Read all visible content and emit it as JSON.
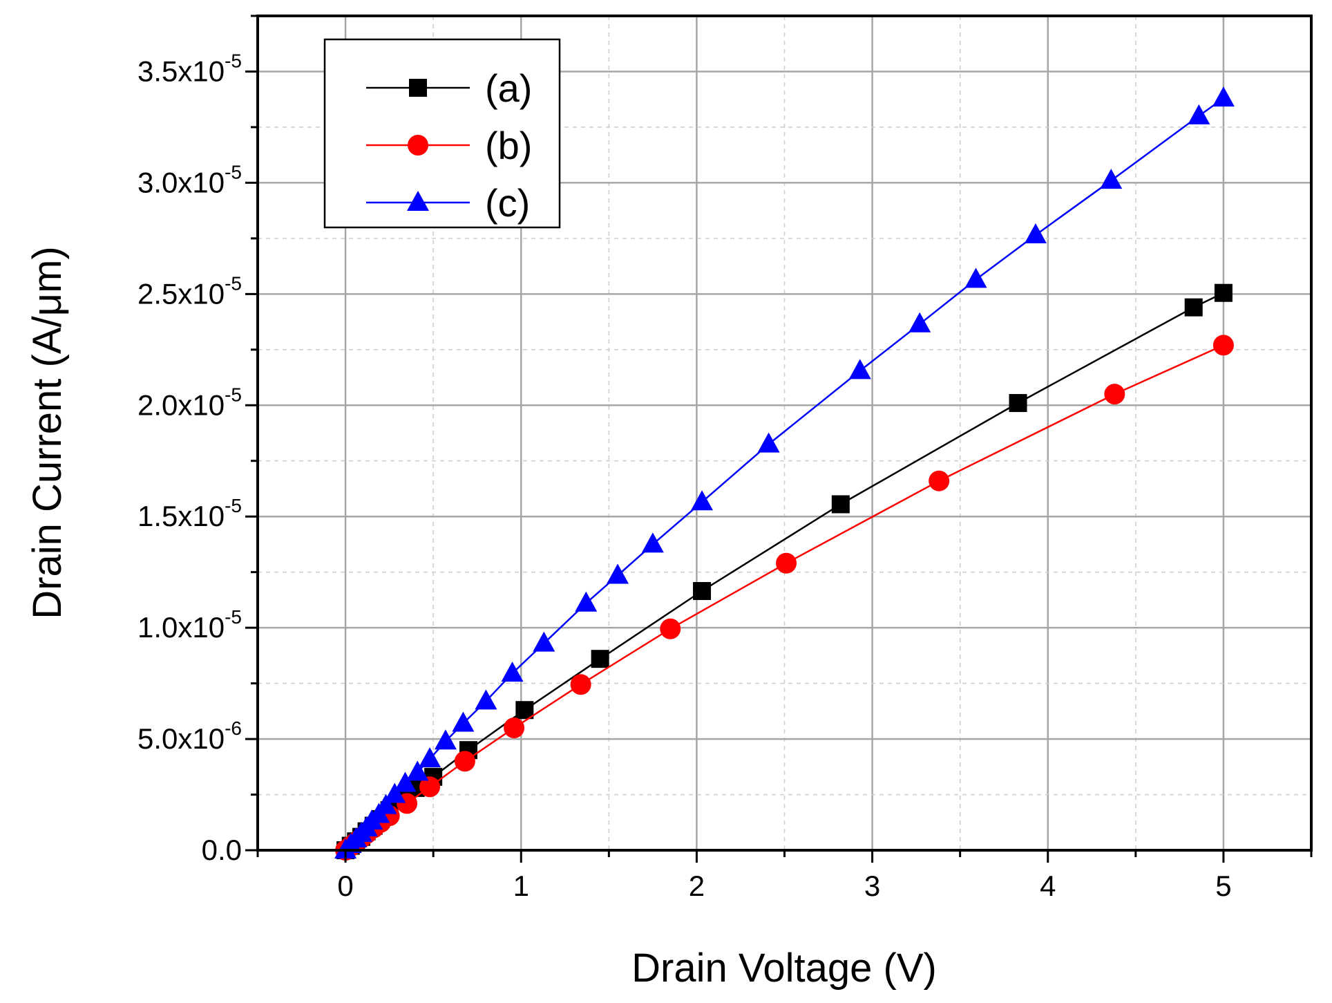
{
  "chart_data": {
    "type": "line",
    "xlabel": "Drain Voltage (V)",
    "ylabel": "Drain Current (A/μm)",
    "xlim": [
      -0.5,
      5.5
    ],
    "ylim": [
      0,
      3.75e-05
    ],
    "grid": true,
    "legend_position": "top-left",
    "x_ticks": [
      {
        "value": 0,
        "label": "0"
      },
      {
        "value": 1,
        "label": "1"
      },
      {
        "value": 2,
        "label": "2"
      },
      {
        "value": 3,
        "label": "3"
      },
      {
        "value": 4,
        "label": "4"
      },
      {
        "value": 5,
        "label": "5"
      }
    ],
    "y_ticks": [
      {
        "value": 0,
        "mantissa": "0.0",
        "exponent": ""
      },
      {
        "value": 5e-06,
        "mantissa": "5.0x10",
        "exponent": "-6"
      },
      {
        "value": 1e-05,
        "mantissa": "1.0x10",
        "exponent": "-5"
      },
      {
        "value": 1.5e-05,
        "mantissa": "1.5x10",
        "exponent": "-5"
      },
      {
        "value": 2e-05,
        "mantissa": "2.0x10",
        "exponent": "-5"
      },
      {
        "value": 2.5e-05,
        "mantissa": "2.5x10",
        "exponent": "-5"
      },
      {
        "value": 3e-05,
        "mantissa": "3.0x10",
        "exponent": "-5"
      },
      {
        "value": 3.5e-05,
        "mantissa": "3.5x10",
        "exponent": "-5"
      }
    ],
    "series": [
      {
        "name": "(a)",
        "color": "#000000",
        "marker": "square",
        "x": [
          0,
          0.03,
          0.06,
          0.09,
          0.12,
          0.16,
          0.2,
          0.25,
          0.32,
          0.4,
          0.5,
          0.7,
          1.02,
          1.45,
          2.03,
          2.82,
          3.83,
          4.83,
          5.0
        ],
        "y": [
          0,
          2e-07,
          4e-07,
          6e-07,
          8.5e-07,
          1.1e-06,
          1.4e-06,
          1.8e-06,
          2.3e-06,
          2.8e-06,
          3.3e-06,
          4.5e-06,
          6.3e-06,
          8.6e-06,
          1.165e-05,
          1.555e-05,
          2.01e-05,
          2.44e-05,
          2.505e-05
        ]
      },
      {
        "name": "(b)",
        "color": "#ff0000",
        "marker": "circle",
        "x": [
          0,
          0.03,
          0.06,
          0.09,
          0.12,
          0.16,
          0.2,
          0.25,
          0.35,
          0.48,
          0.68,
          0.96,
          1.34,
          1.85,
          2.51,
          3.38,
          4.38,
          5.0
        ],
        "y": [
          0,
          1.8e-07,
          3.6e-07,
          5.5e-07,
          7.5e-07,
          1e-06,
          1.25e-06,
          1.55e-06,
          2.1e-06,
          2.85e-06,
          4e-06,
          5.5e-06,
          7.45e-06,
          9.95e-06,
          1.29e-05,
          1.66e-05,
          2.05e-05,
          2.27e-05
        ]
      },
      {
        "name": "(c)",
        "color": "#0000ff",
        "marker": "triangle",
        "x": [
          0,
          0.03,
          0.06,
          0.09,
          0.12,
          0.15,
          0.19,
          0.23,
          0.28,
          0.34,
          0.41,
          0.48,
          0.57,
          0.67,
          0.8,
          0.95,
          1.13,
          1.37,
          1.55,
          1.75,
          2.03,
          2.41,
          2.93,
          3.27,
          3.59,
          3.93,
          4.36,
          4.86,
          5.0
        ],
        "y": [
          0,
          2.5e-07,
          5e-07,
          7.5e-07,
          1e-06,
          1.3e-06,
          1.6e-06,
          2e-06,
          2.5e-06,
          3e-06,
          3.5e-06,
          4.1e-06,
          4.9e-06,
          5.7e-06,
          6.7e-06,
          7.95e-06,
          9.3e-06,
          1.11e-05,
          1.235e-05,
          1.375e-05,
          1.565e-05,
          1.825e-05,
          2.155e-05,
          2.365e-05,
          2.565e-05,
          2.765e-05,
          3.01e-05,
          3.3e-05,
          3.38e-05
        ]
      }
    ]
  }
}
